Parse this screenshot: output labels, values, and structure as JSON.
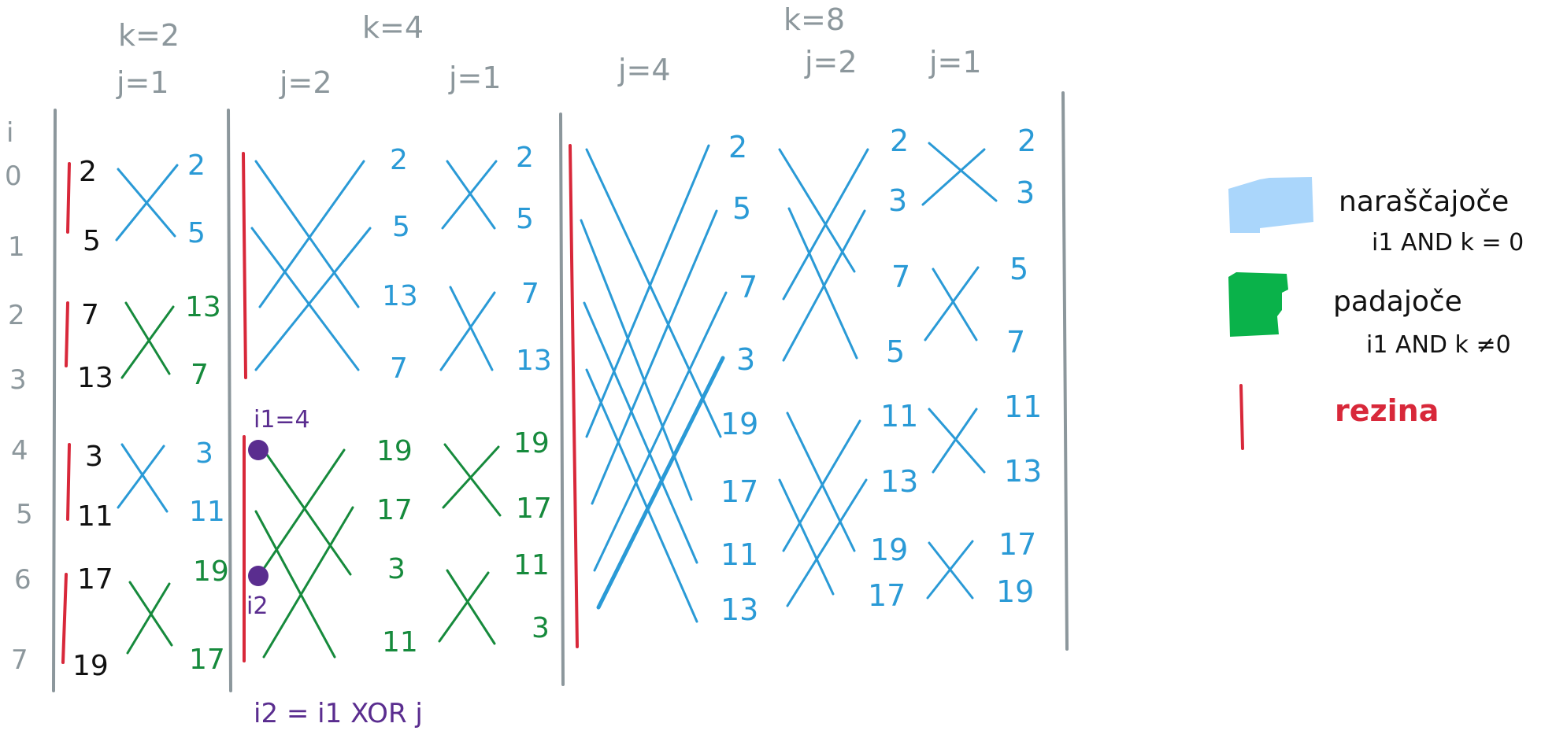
{
  "colors": {
    "gray": "#8c979c",
    "blue": "#2a9ad6",
    "green": "#168a3c",
    "black": "#111111",
    "red": "#d8283a",
    "purple": "#5a2d8f",
    "legend_blue": "#aad6fb",
    "legend_green": "#0ab24a"
  },
  "header": {
    "k2": "k=2",
    "k4": "k=4",
    "k8": "k=8",
    "j1_a": "j=1",
    "j2_a": "j=2",
    "j1_b": "j=1",
    "j4": "j=4",
    "j2_b": "j=2",
    "j1_c": "j=1"
  },
  "row_axis": {
    "label": "i",
    "rows": [
      "0",
      "1",
      "2",
      "3",
      "4",
      "5",
      "6",
      "7"
    ]
  },
  "columns": {
    "c0": [
      "2",
      "5",
      "7",
      "13",
      "3",
      "11",
      "17",
      "19"
    ],
    "c1": [
      "2",
      "5",
      "13",
      "7",
      "3",
      "11",
      "19",
      "17"
    ],
    "c2": [
      "2",
      "5",
      "13",
      "7",
      "19",
      "17",
      "3",
      "11"
    ],
    "c3": [
      "2",
      "5",
      "7",
      "13",
      "19",
      "17",
      "11",
      "3"
    ],
    "c4": [
      "2",
      "5",
      "7",
      "3",
      "19",
      "17",
      "11",
      "13"
    ],
    "c5": [
      "2",
      "3",
      "7",
      "5",
      "11",
      "13",
      "19",
      "17"
    ],
    "c6": [
      "2",
      "3",
      "5",
      "7",
      "11",
      "13",
      "17",
      "19"
    ]
  },
  "annotations": {
    "i1": "i1=4",
    "i2": "i2",
    "formula": "i2 = i1 XOR j"
  },
  "legend": {
    "ascending_title": "naraščajoče",
    "ascending_rule": "i1 AND k = 0",
    "descending_title": "padajoče",
    "descending_rule": "i1 AND k ≠0",
    "section": "rezina"
  }
}
